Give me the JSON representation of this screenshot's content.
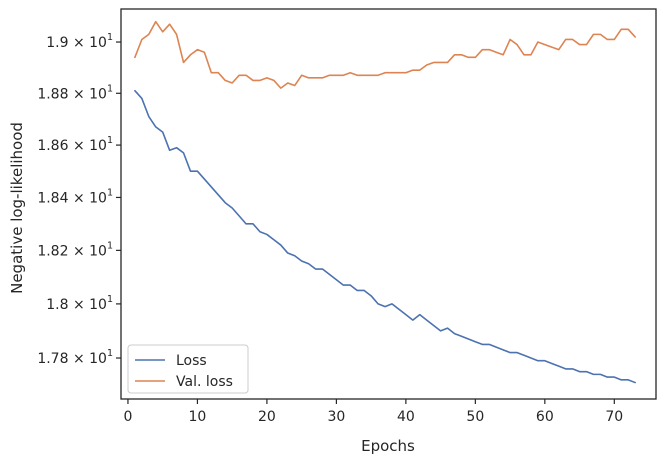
{
  "chart_data": {
    "type": "line",
    "xlabel": "Epochs",
    "ylabel": "Negative log-likelihood",
    "yscale": "log",
    "xlim": [
      -1,
      76
    ],
    "ylim": [
      17.65,
      19.13
    ],
    "grid": false,
    "legend_position": "lower-left",
    "xticks": [
      0,
      10,
      20,
      30,
      40,
      50,
      60,
      70
    ],
    "xtick_labels": [
      "0",
      "10",
      "20",
      "30",
      "40",
      "50",
      "60",
      "70"
    ],
    "yticks": [
      17.8,
      18.0,
      18.2,
      18.4,
      18.6,
      18.8,
      19.0
    ],
    "ytick_labels": [
      {
        "mantissa": "1.78",
        "times": "×",
        "base": "10",
        "exp": "1"
      },
      {
        "mantissa": "1.8",
        "times": "×",
        "base": "10",
        "exp": "1"
      },
      {
        "mantissa": "1.82",
        "times": "×",
        "base": "10",
        "exp": "1"
      },
      {
        "mantissa": "1.84",
        "times": "×",
        "base": "10",
        "exp": "1"
      },
      {
        "mantissa": "1.86",
        "times": "×",
        "base": "10",
        "exp": "1"
      },
      {
        "mantissa": "1.88",
        "times": "×",
        "base": "10",
        "exp": "1"
      },
      {
        "mantissa": "1.9",
        "times": "×",
        "base": "10",
        "exp": "1"
      }
    ],
    "x": [
      1,
      2,
      3,
      4,
      5,
      6,
      7,
      8,
      9,
      10,
      11,
      12,
      13,
      14,
      15,
      16,
      17,
      18,
      19,
      20,
      21,
      22,
      23,
      24,
      25,
      26,
      27,
      28,
      29,
      30,
      31,
      32,
      33,
      34,
      35,
      36,
      37,
      38,
      39,
      40,
      41,
      42,
      43,
      44,
      45,
      46,
      47,
      48,
      49,
      50,
      51,
      52,
      53,
      54,
      55,
      56,
      57,
      58,
      59,
      60,
      61,
      62,
      63,
      64,
      65,
      66,
      67,
      68,
      69,
      70,
      71,
      72,
      73
    ],
    "series": [
      {
        "name": "Loss",
        "color": "#4c72b0",
        "values": [
          18.81,
          18.78,
          18.71,
          18.67,
          18.65,
          18.58,
          18.59,
          18.57,
          18.5,
          18.5,
          18.47,
          18.44,
          18.41,
          18.38,
          18.36,
          18.33,
          18.3,
          18.3,
          18.27,
          18.26,
          18.24,
          18.22,
          18.19,
          18.18,
          18.16,
          18.15,
          18.13,
          18.13,
          18.11,
          18.09,
          18.07,
          18.07,
          18.05,
          18.05,
          18.03,
          18.0,
          17.99,
          18.0,
          17.98,
          17.96,
          17.94,
          17.96,
          17.94,
          17.92,
          17.9,
          17.91,
          17.89,
          17.88,
          17.87,
          17.86,
          17.85,
          17.85,
          17.84,
          17.83,
          17.82,
          17.82,
          17.81,
          17.8,
          17.79,
          17.79,
          17.78,
          17.77,
          17.76,
          17.76,
          17.75,
          17.75,
          17.74,
          17.74,
          17.73,
          17.73,
          17.72,
          17.72,
          17.71
        ]
      },
      {
        "name": "Val. loss",
        "color": "#dd8452",
        "values": [
          18.94,
          19.01,
          19.03,
          19.08,
          19.04,
          19.07,
          19.03,
          18.92,
          18.95,
          18.97,
          18.96,
          18.88,
          18.88,
          18.85,
          18.84,
          18.87,
          18.87,
          18.85,
          18.85,
          18.86,
          18.85,
          18.82,
          18.84,
          18.83,
          18.87,
          18.86,
          18.86,
          18.86,
          18.87,
          18.87,
          18.87,
          18.88,
          18.87,
          18.87,
          18.87,
          18.87,
          18.88,
          18.88,
          18.88,
          18.88,
          18.89,
          18.89,
          18.91,
          18.92,
          18.92,
          18.92,
          18.95,
          18.95,
          18.94,
          18.94,
          18.97,
          18.97,
          18.96,
          18.95,
          19.01,
          18.99,
          18.95,
          18.95,
          19.0,
          18.99,
          18.98,
          18.97,
          19.01,
          19.01,
          18.99,
          18.99,
          19.03,
          19.03,
          19.01,
          19.01,
          19.05,
          19.05,
          19.02
        ]
      }
    ]
  }
}
